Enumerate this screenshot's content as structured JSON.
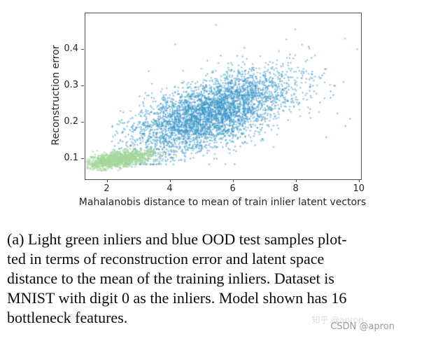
{
  "figure": {
    "caption": "(a) Light green inliers and blue OOD test samples plot-\nted in terms of reconstruction error and latent space\ndistance to the mean of the training inliers. Dataset is\nMNIST with digit 0 as the inliers. Model shown has 16\nbottleneck features."
  },
  "watermark": {
    "primary": "CSDN @apron",
    "secondary": "知乎 @apron"
  },
  "chart_data": {
    "type": "scatter",
    "title": "",
    "xlabel": "Mahalanobis distance to mean of train inlier latent vectors",
    "ylabel": "Reconstruction error",
    "xlim": [
      1.3,
      10.05
    ],
    "ylim": [
      0.044,
      0.5
    ],
    "xticks": [
      2,
      4,
      6,
      8,
      10
    ],
    "yticks": [
      0.1,
      0.2,
      0.3,
      0.4
    ],
    "grid": false,
    "legend": "none",
    "seed": 1337,
    "series": [
      {
        "name": "ood-test-samples",
        "label": "blue OOD test samples",
        "color": "#3a97c9",
        "alpha": 0.5,
        "marker": "+",
        "count": 4000,
        "x_mean": 5.3,
        "x_std": 1.3,
        "x_min": 2.1,
        "x_max": 10.0,
        "y_base": 0.225,
        "y_slope": 0.028,
        "y_noise": 0.047,
        "y_min": 0.085,
        "y_max": 0.475,
        "outliers": [
          [
            5.45,
            0.468
          ],
          [
            9.55,
            0.19
          ],
          [
            9.3,
            0.225
          ],
          [
            8.95,
            0.16
          ],
          [
            4.15,
            0.415
          ],
          [
            6.35,
            0.405
          ],
          [
            2.45,
            0.13
          ],
          [
            9.7,
            0.21
          ]
        ]
      },
      {
        "name": "inliers",
        "label": "Light green inliers",
        "color": "#a5d79b",
        "alpha": 0.75,
        "marker": "+",
        "count": 1100,
        "x_mean": 2.35,
        "x_std": 0.52,
        "x_min": 1.35,
        "x_max": 4.4,
        "y_base": 0.099,
        "y_slope": 0.013,
        "y_noise": 0.0105,
        "y_min": 0.068,
        "y_max": 0.175,
        "outliers": [
          [
            3.9,
            0.125
          ],
          [
            4.15,
            0.12
          ],
          [
            1.5,
            0.08
          ]
        ]
      }
    ]
  }
}
